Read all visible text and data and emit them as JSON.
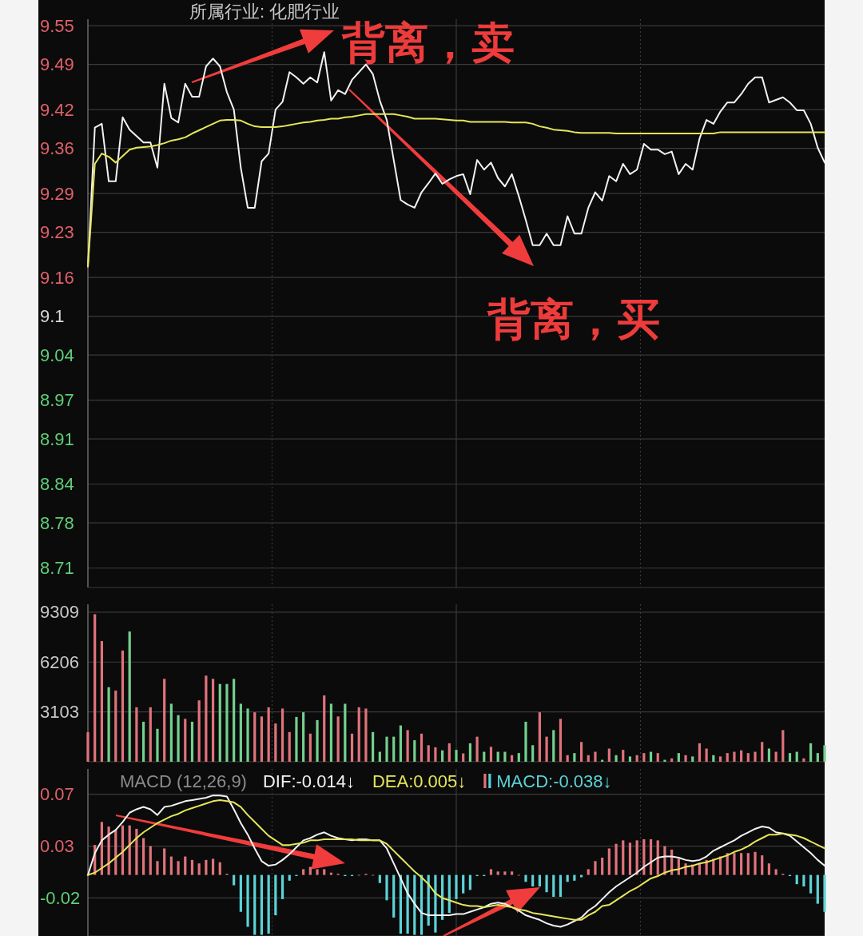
{
  "chart_data": [
    {
      "type": "line",
      "title": "所属行业: 化肥行业",
      "tick_labels": "y",
      "grid": true,
      "categories": [
        null,
        null,
        null,
        null,
        null,
        null,
        null,
        null,
        null,
        null,
        null,
        null,
        null,
        null,
        null,
        null,
        null,
        null,
        null,
        null,
        null,
        null,
        null,
        null,
        null,
        null,
        null,
        null,
        null,
        null,
        null,
        null,
        null,
        null,
        null,
        null,
        null,
        null,
        null,
        null,
        null,
        null,
        null,
        null,
        null,
        null,
        null,
        null,
        null,
        null,
        null,
        null,
        null,
        null,
        null,
        null,
        null,
        null,
        null,
        null,
        null,
        null,
        null,
        null,
        null,
        null,
        null,
        null,
        null,
        null,
        null,
        null,
        null,
        null,
        null,
        null,
        null,
        null,
        null,
        null,
        null,
        null,
        null,
        null,
        null,
        null,
        null,
        null,
        null,
        null,
        null,
        null,
        null,
        null,
        null,
        null,
        null,
        null,
        null,
        null,
        null,
        null,
        null,
        null,
        null,
        null,
        null
      ],
      "ylim": [
        8.68,
        9.56
      ],
      "yticks": [
        9.55,
        9.49,
        9.42,
        9.36,
        9.29,
        9.23,
        9.16,
        9.1,
        9.04,
        8.97,
        8.91,
        8.84,
        8.78,
        8.71
      ],
      "annotations": [
        "背离，卖",
        "背离，买"
      ],
      "series": [
        {
          "color": "#f2f2f2",
          "values": [
            9.177,
            9.392,
            9.398,
            9.309,
            9.309,
            9.408,
            9.389,
            9.379,
            9.369,
            9.369,
            9.33,
            9.46,
            9.407,
            9.4,
            9.46,
            9.44,
            9.44,
            9.487,
            9.499,
            9.487,
            9.447,
            9.42,
            9.33,
            9.268,
            9.268,
            9.34,
            9.352,
            9.42,
            9.432,
            9.478,
            9.47,
            9.46,
            9.47,
            9.462,
            9.509,
            9.434,
            9.45,
            9.444,
            9.466,
            9.478,
            9.49,
            9.475,
            9.434,
            9.404,
            9.342,
            9.28,
            9.273,
            9.268,
            9.292,
            9.306,
            9.321,
            9.305,
            9.312,
            9.317,
            9.32,
            9.289,
            9.342,
            9.327,
            9.338,
            9.314,
            9.301,
            9.32,
            9.286,
            9.249,
            9.21,
            9.21,
            9.228,
            9.21,
            9.21,
            9.255,
            9.228,
            9.228,
            9.268,
            9.292,
            9.279,
            9.317,
            9.309,
            9.336,
            9.32,
            9.327,
            9.367,
            9.358,
            9.358,
            9.351,
            9.355,
            9.32,
            9.336,
            9.327,
            9.375,
            9.404,
            9.398,
            9.417,
            9.431,
            9.431,
            9.444,
            9.46,
            9.47,
            9.47,
            9.431,
            9.435,
            9.439,
            9.431,
            9.419,
            9.419,
            9.398,
            9.361,
            9.338
          ]
        },
        {
          "color": "#e6e65a",
          "values": [
            9.177,
            9.336,
            9.352,
            9.347,
            9.338,
            9.348,
            9.358,
            9.361,
            9.362,
            9.363,
            9.365,
            9.368,
            9.372,
            9.374,
            9.377,
            9.383,
            9.388,
            9.393,
            9.398,
            9.403,
            9.404,
            9.404,
            9.403,
            9.398,
            9.394,
            9.393,
            9.393,
            9.393,
            9.394,
            9.396,
            9.398,
            9.4,
            9.401,
            9.403,
            9.404,
            9.406,
            9.406,
            9.408,
            9.409,
            9.411,
            9.413,
            9.413,
            9.413,
            9.413,
            9.413,
            9.411,
            9.409,
            9.406,
            9.406,
            9.406,
            9.406,
            9.405,
            9.404,
            9.403,
            9.403,
            9.401,
            9.401,
            9.401,
            9.401,
            9.401,
            9.401,
            9.4,
            9.4,
            9.4,
            9.398,
            9.394,
            9.392,
            9.389,
            9.388,
            9.387,
            9.385,
            9.384,
            9.384,
            9.384,
            9.384,
            9.384,
            9.383,
            9.383,
            9.383,
            9.383,
            9.383,
            9.383,
            9.383,
            9.383,
            9.383,
            9.383,
            9.383,
            9.383,
            9.383,
            9.383,
            9.383,
            9.385,
            9.385,
            9.385,
            9.385,
            9.385,
            9.385,
            9.385,
            9.385,
            9.385,
            9.385,
            9.385,
            9.385,
            9.385,
            9.385,
            9.385,
            9.385
          ]
        }
      ]
    },
    {
      "type": "bar",
      "tick_labels": "y",
      "grid": true,
      "categories": [
        null,
        null,
        null,
        null,
        null,
        null,
        null,
        null,
        null,
        null,
        null,
        null,
        null,
        null,
        null,
        null,
        null,
        null,
        null,
        null,
        null,
        null,
        null,
        null,
        null,
        null,
        null,
        null,
        null,
        null,
        null,
        null,
        null,
        null,
        null,
        null,
        null,
        null,
        null,
        null,
        null,
        null,
        null,
        null,
        null,
        null,
        null,
        null,
        null,
        null,
        null,
        null,
        null,
        null,
        null,
        null,
        null,
        null,
        null,
        null,
        null,
        null,
        null,
        null,
        null,
        null,
        null,
        null,
        null,
        null,
        null,
        null,
        null,
        null,
        null,
        null,
        null,
        null,
        null,
        null,
        null,
        null,
        null,
        null,
        null,
        null,
        null,
        null,
        null,
        null,
        null,
        null,
        null,
        null,
        null,
        null,
        null,
        null,
        null,
        null,
        null,
        null,
        null,
        null,
        null,
        null,
        null
      ],
      "ylim": [
        0,
        9800
      ],
      "yticks": [
        3103,
        6206,
        9309
      ],
      "series": [
        {
          "values": [
            1840,
            9180,
            7510,
            4640,
            4430,
            6920,
            8110,
            3390,
            2490,
            3390,
            2050,
            5160,
            3610,
            2900,
            2670,
            2490,
            3820,
            5360,
            5160,
            4840,
            4840,
            5160,
            3610,
            3310,
            3080,
            2820,
            3390,
            2380,
            3310,
            1850,
            2790,
            3080,
            1750,
            2590,
            4130,
            3610,
            2820,
            3610,
            1750,
            3390,
            3310,
            1850,
            620,
            1560,
            1560,
            2260,
            1970,
            1340,
            1750,
            1030,
            900,
            710,
            1150,
            740,
            520,
            1150,
            1560,
            620,
            930,
            620,
            620,
            410,
            540,
            2490,
            1030,
            3080,
            1560,
            1970,
            2670,
            410,
            540,
            1230,
            410,
            620,
            120,
            820,
            410,
            740,
            330,
            410,
            540,
            620,
            540,
            120,
            210,
            540,
            410,
            330,
            1150,
            820,
            410,
            330,
            540,
            620,
            710,
            540,
            620,
            1230,
            820,
            620,
            1970,
            540,
            620,
            210,
            1150,
            540,
            1030
          ],
          "colors": [
            "#e0737b",
            "#e0737b",
            "#e0737b",
            "#74d08e",
            "#e0737b",
            "#e0737b",
            "#74d08e",
            "#e0737b",
            "#74d08e",
            "#e0737b",
            "#74d08e",
            "#e0737b",
            "#74d08e",
            "#74d08e",
            "#e0737b",
            "#74d08e",
            "#e0737b",
            "#e0737b",
            "#e0737b",
            "#74d08e",
            "#74d08e",
            "#74d08e",
            "#74d08e",
            "#74d08e",
            "#e0737b",
            "#e0737b",
            "#e0737b",
            "#e0737b",
            "#e0737b",
            "#e0737b",
            "#74d08e",
            "#74d08e",
            "#e0737b",
            "#74d08e",
            "#e0737b",
            "#74d08e",
            "#e0737b",
            "#74d08e",
            "#e0737b",
            "#e0737b",
            "#e0737b",
            "#74d08e",
            "#74d08e",
            "#74d08e",
            "#74d08e",
            "#74d08e",
            "#e0737b",
            "#74d08e",
            "#e0737b",
            "#e0737b",
            "#e0737b",
            "#74d08e",
            "#e0737b",
            "#74d08e",
            "#e0737b",
            "#74d08e",
            "#e0737b",
            "#74d08e",
            "#e0737b",
            "#74d08e",
            "#74d08e",
            "#e0737b",
            "#74d08e",
            "#74d08e",
            "#74d08e",
            "#e0737b",
            "#e0737b",
            "#74d08e",
            "#e0737b",
            "#e0737b",
            "#74d08e",
            "#e0737b",
            "#e0737b",
            "#e0737b",
            "#74d08e",
            "#e0737b",
            "#74d08e",
            "#e0737b",
            "#74d08e",
            "#e0737b",
            "#e0737b",
            "#74d08e",
            "#e0737b",
            "#74d08e",
            "#e0737b",
            "#74d08e",
            "#e0737b",
            "#74d08e",
            "#e0737b",
            "#e0737b",
            "#74d08e",
            "#e0737b",
            "#e0737b",
            "#e0737b",
            "#e0737b",
            "#e0737b",
            "#e0737b",
            "#e0737b",
            "#74d08e",
            "#e0737b",
            "#e0737b",
            "#74d08e",
            "#74d08e",
            "#e0737b",
            "#74d08e",
            "#74d08e",
            "#74d08e"
          ]
        }
      ]
    },
    {
      "type": "line",
      "title": "MACD (12,26,9)",
      "tick_labels": "y",
      "grid": true,
      "legend": "top",
      "categories": [
        null,
        null,
        null,
        null,
        null,
        null,
        null,
        null,
        null,
        null,
        null,
        null,
        null,
        null,
        null,
        null,
        null,
        null,
        null,
        null,
        null,
        null,
        null,
        null,
        null,
        null,
        null,
        null,
        null,
        null,
        null,
        null,
        null,
        null,
        null,
        null,
        null,
        null,
        null,
        null,
        null,
        null,
        null,
        null,
        null,
        null,
        null,
        null,
        null,
        null,
        null,
        null,
        null,
        null,
        null,
        null,
        null,
        null,
        null,
        null,
        null,
        null,
        null,
        null,
        null,
        null,
        null,
        null,
        null,
        null,
        null,
        null,
        null,
        null,
        null,
        null,
        null,
        null,
        null,
        null,
        null,
        null,
        null,
        null,
        null,
        null,
        null,
        null,
        null,
        null,
        null,
        null,
        null,
        null,
        null,
        null,
        null,
        null,
        null,
        null,
        null,
        null,
        null,
        null,
        null,
        null,
        null
      ],
      "ylim": [
        -0.053,
        0.092
      ],
      "yticks": [
        0.07,
        {
          "value": 0.025,
          "label": "0.03"
        },
        -0.02
      ],
      "series": [
        {
          "type": "bar",
          "name": "MACD:-0.038↓",
          "color": "#5bd3d8",
          "values": [
            0,
            0.026,
            0.046,
            0.042,
            0.039,
            0.043,
            0.043,
            0.04,
            0.032,
            0.025,
            0.012,
            0.023,
            0.016,
            0.012,
            0.016,
            0.013,
            0.01,
            0.013,
            0.014,
            0.011,
            0.001,
            -0.009,
            -0.032,
            -0.045,
            -0.052,
            -0.052,
            -0.051,
            -0.035,
            -0.021,
            -0.005,
            -0.001,
            0.005,
            0.007,
            0.005,
            0.005,
            0.002,
            0.001,
            -0.001,
            -0.001,
            0,
            0.001,
            0,
            -0.007,
            -0.022,
            -0.037,
            -0.051,
            -0.051,
            -0.052,
            -0.052,
            -0.044,
            -0.05,
            -0.039,
            -0.033,
            -0.021,
            -0.016,
            -0.013,
            -0.001,
            -0.001,
            0.005,
            0.003,
            0.003,
            0.003,
            0,
            -0.006,
            -0.01,
            -0.01,
            -0.015,
            -0.019,
            -0.019,
            -0.006,
            -0.005,
            -0.002,
            0.005,
            0.012,
            0.015,
            0.023,
            0.027,
            0.03,
            0.028,
            0.03,
            0.031,
            0.031,
            0.03,
            0.025,
            0.022,
            0.014,
            0.01,
            0.009,
            0.01,
            0.013,
            0.014,
            0.016,
            0.019,
            0.019,
            0.019,
            0.019,
            0.02,
            0.017,
            0.01,
            0.005,
            0.001,
            -0.001,
            -0.008,
            -0.01,
            -0.016,
            -0.025,
            -0.032
          ],
          "colors": [
            "#e0737b",
            "#e0737b",
            "#e0737b",
            "#e0737b",
            "#e0737b",
            "#e0737b",
            "#e0737b",
            "#e0737b",
            "#e0737b",
            "#e0737b",
            "#e0737b",
            "#e0737b",
            "#e0737b",
            "#e0737b",
            "#e0737b",
            "#e0737b",
            "#e0737b",
            "#e0737b",
            "#e0737b",
            "#e0737b",
            "#e0737b",
            "#5bd3d8",
            "#5bd3d8",
            "#5bd3d8",
            "#5bd3d8",
            "#5bd3d8",
            "#5bd3d8",
            "#5bd3d8",
            "#5bd3d8",
            "#5bd3d8",
            "#5bd3d8",
            "#e0737b",
            "#e0737b",
            "#e0737b",
            "#e0737b",
            "#e0737b",
            "#e0737b",
            "#5bd3d8",
            "#5bd3d8",
            "#e0737b",
            "#e0737b",
            "#e0737b",
            "#5bd3d8",
            "#5bd3d8",
            "#5bd3d8",
            "#5bd3d8",
            "#5bd3d8",
            "#5bd3d8",
            "#5bd3d8",
            "#5bd3d8",
            "#5bd3d8",
            "#5bd3d8",
            "#5bd3d8",
            "#5bd3d8",
            "#5bd3d8",
            "#5bd3d8",
            "#5bd3d8",
            "#5bd3d8",
            "#e0737b",
            "#e0737b",
            "#e0737b",
            "#e0737b",
            "#e0737b",
            "#5bd3d8",
            "#5bd3d8",
            "#5bd3d8",
            "#5bd3d8",
            "#5bd3d8",
            "#5bd3d8",
            "#5bd3d8",
            "#5bd3d8",
            "#5bd3d8",
            "#e0737b",
            "#e0737b",
            "#e0737b",
            "#e0737b",
            "#e0737b",
            "#e0737b",
            "#e0737b",
            "#e0737b",
            "#e0737b",
            "#e0737b",
            "#e0737b",
            "#e0737b",
            "#e0737b",
            "#e0737b",
            "#e0737b",
            "#e0737b",
            "#e0737b",
            "#e0737b",
            "#e0737b",
            "#e0737b",
            "#e0737b",
            "#e0737b",
            "#e0737b",
            "#e0737b",
            "#e0737b",
            "#e0737b",
            "#e0737b",
            "#e0737b",
            "#e0737b",
            "#5bd3d8",
            "#5bd3d8",
            "#5bd3d8",
            "#5bd3d8",
            "#5bd3d8",
            "#5bd3d8"
          ]
        },
        {
          "name": "DIF:-0.014↓",
          "color": "#f2f2f2",
          "values": [
            0.0,
            0.019,
            0.03,
            0.035,
            0.039,
            0.046,
            0.054,
            0.057,
            0.059,
            0.057,
            0.052,
            0.059,
            0.06,
            0.062,
            0.064,
            0.065,
            0.066,
            0.067,
            0.069,
            0.069,
            0.068,
            0.057,
            0.045,
            0.035,
            0.023,
            0.012,
            0.008,
            0.009,
            0.013,
            0.018,
            0.024,
            0.03,
            0.032,
            0.035,
            0.037,
            0.034,
            0.032,
            0.031,
            0.03,
            0.031,
            0.031,
            0.03,
            0.03,
            0.023,
            0.01,
            -0.003,
            -0.016,
            -0.025,
            -0.033,
            -0.035,
            -0.035,
            -0.035,
            -0.035,
            -0.034,
            -0.034,
            -0.032,
            -0.03,
            -0.028,
            -0.025,
            -0.024,
            -0.025,
            -0.028,
            -0.031,
            -0.035,
            -0.037,
            -0.039,
            -0.042,
            -0.044,
            -0.045,
            -0.043,
            -0.04,
            -0.037,
            -0.031,
            -0.027,
            -0.021,
            -0.015,
            -0.01,
            -0.006,
            -0.002,
            0.002,
            0.007,
            0.011,
            0.015,
            0.016,
            0.016,
            0.015,
            0.013,
            0.012,
            0.013,
            0.016,
            0.021,
            0.024,
            0.027,
            0.03,
            0.034,
            0.037,
            0.04,
            0.042,
            0.041,
            0.037,
            0.036,
            0.034,
            0.029,
            0.024,
            0.019,
            0.013,
            0.008
          ]
        },
        {
          "name": "DEA:0.005↓",
          "color": "#e6e65a",
          "values": [
            0.0,
            0.002,
            0.006,
            0.01,
            0.015,
            0.02,
            0.026,
            0.032,
            0.037,
            0.041,
            0.045,
            0.048,
            0.051,
            0.053,
            0.056,
            0.058,
            0.06,
            0.062,
            0.064,
            0.065,
            0.064,
            0.063,
            0.059,
            0.052,
            0.046,
            0.04,
            0.034,
            0.03,
            0.026,
            0.026,
            0.027,
            0.028,
            0.03,
            0.03,
            0.031,
            0.031,
            0.031,
            0.031,
            0.031,
            0.03,
            0.03,
            0.03,
            0.03,
            0.027,
            0.021,
            0.015,
            0.009,
            0.003,
            -0.002,
            -0.008,
            -0.016,
            -0.02,
            -0.022,
            -0.024,
            -0.026,
            -0.027,
            -0.027,
            -0.028,
            -0.027,
            -0.026,
            -0.027,
            -0.028,
            -0.03,
            -0.031,
            -0.033,
            -0.034,
            -0.035,
            -0.036,
            -0.037,
            -0.038,
            -0.039,
            -0.039,
            -0.035,
            -0.032,
            -0.027,
            -0.026,
            -0.022,
            -0.018,
            -0.014,
            -0.011,
            -0.007,
            -0.003,
            -0.001,
            0.002,
            0.004,
            0.005,
            0.007,
            0.008,
            0.01,
            0.011,
            0.013,
            0.015,
            0.017,
            0.02,
            0.022,
            0.025,
            0.029,
            0.032,
            0.035,
            0.035,
            0.036,
            0.035,
            0.034,
            0.032,
            0.029,
            0.026,
            0.023
          ]
        }
      ]
    }
  ]
}
